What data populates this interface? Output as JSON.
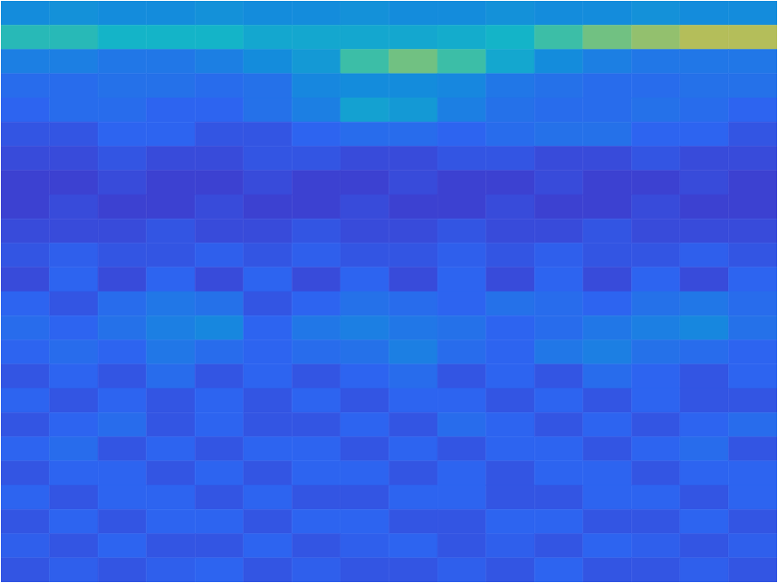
{
  "chart_data": {
    "type": "heatmap",
    "tick_labels": false,
    "xlim": [
      0,
      9
    ],
    "xticks": [
      1,
      2,
      3,
      4,
      5,
      6,
      7,
      8
    ],
    "ylim": [
      0,
      4.8
    ],
    "yticks": [
      0.8,
      1.8,
      2.8,
      3.8
    ],
    "clim": [
      0,
      1
    ],
    "cells": [
      [
        0.3,
        0.32,
        0.3,
        0.3,
        0.32,
        0.3,
        0.3,
        0.32,
        0.3,
        0.3,
        0.32,
        0.3,
        0.3,
        0.32,
        0.3,
        0.3
      ],
      [
        0.5,
        0.5,
        0.45,
        0.45,
        0.45,
        0.4,
        0.4,
        0.4,
        0.4,
        0.42,
        0.45,
        0.55,
        0.65,
        0.7,
        0.75,
        0.75
      ],
      [
        0.25,
        0.25,
        0.22,
        0.22,
        0.25,
        0.3,
        0.35,
        0.55,
        0.65,
        0.55,
        0.4,
        0.3,
        0.25,
        0.22,
        0.22,
        0.22
      ],
      [
        0.18,
        0.18,
        0.2,
        0.2,
        0.18,
        0.2,
        0.28,
        0.3,
        0.3,
        0.28,
        0.22,
        0.2,
        0.18,
        0.18,
        0.2,
        0.2
      ],
      [
        0.15,
        0.18,
        0.18,
        0.15,
        0.15,
        0.2,
        0.25,
        0.38,
        0.35,
        0.25,
        0.2,
        0.18,
        0.18,
        0.2,
        0.18,
        0.15
      ],
      [
        0.12,
        0.12,
        0.15,
        0.15,
        0.12,
        0.12,
        0.15,
        0.18,
        0.18,
        0.15,
        0.18,
        0.2,
        0.2,
        0.15,
        0.15,
        0.12
      ],
      [
        0.1,
        0.1,
        0.12,
        0.1,
        0.1,
        0.12,
        0.12,
        0.1,
        0.1,
        0.12,
        0.12,
        0.1,
        0.1,
        0.12,
        0.1,
        0.1
      ],
      [
        0.08,
        0.08,
        0.1,
        0.08,
        0.08,
        0.1,
        0.08,
        0.08,
        0.1,
        0.08,
        0.08,
        0.1,
        0.08,
        0.08,
        0.1,
        0.08
      ],
      [
        0.08,
        0.1,
        0.08,
        0.08,
        0.1,
        0.08,
        0.08,
        0.1,
        0.08,
        0.08,
        0.1,
        0.08,
        0.08,
        0.1,
        0.08,
        0.08
      ],
      [
        0.1,
        0.1,
        0.1,
        0.12,
        0.1,
        0.1,
        0.12,
        0.1,
        0.1,
        0.12,
        0.1,
        0.1,
        0.12,
        0.1,
        0.1,
        0.1
      ],
      [
        0.12,
        0.14,
        0.12,
        0.12,
        0.14,
        0.12,
        0.14,
        0.12,
        0.12,
        0.14,
        0.12,
        0.14,
        0.12,
        0.12,
        0.14,
        0.12
      ],
      [
        0.1,
        0.15,
        0.1,
        0.15,
        0.1,
        0.15,
        0.1,
        0.15,
        0.1,
        0.15,
        0.1,
        0.15,
        0.1,
        0.15,
        0.1,
        0.15
      ],
      [
        0.15,
        0.12,
        0.18,
        0.22,
        0.2,
        0.12,
        0.15,
        0.2,
        0.18,
        0.15,
        0.2,
        0.18,
        0.15,
        0.2,
        0.22,
        0.18
      ],
      [
        0.18,
        0.15,
        0.2,
        0.25,
        0.28,
        0.15,
        0.22,
        0.25,
        0.22,
        0.2,
        0.15,
        0.18,
        0.22,
        0.25,
        0.28,
        0.2
      ],
      [
        0.15,
        0.18,
        0.15,
        0.22,
        0.18,
        0.15,
        0.18,
        0.2,
        0.25,
        0.18,
        0.15,
        0.22,
        0.25,
        0.2,
        0.18,
        0.15
      ],
      [
        0.12,
        0.15,
        0.12,
        0.18,
        0.12,
        0.15,
        0.12,
        0.15,
        0.18,
        0.12,
        0.15,
        0.12,
        0.18,
        0.15,
        0.12,
        0.15
      ],
      [
        0.15,
        0.12,
        0.15,
        0.12,
        0.15,
        0.12,
        0.15,
        0.12,
        0.15,
        0.15,
        0.12,
        0.15,
        0.12,
        0.15,
        0.12,
        0.12
      ],
      [
        0.12,
        0.15,
        0.18,
        0.12,
        0.15,
        0.12,
        0.12,
        0.15,
        0.12,
        0.18,
        0.15,
        0.12,
        0.15,
        0.12,
        0.15,
        0.18
      ],
      [
        0.15,
        0.18,
        0.12,
        0.15,
        0.12,
        0.15,
        0.15,
        0.12,
        0.15,
        0.12,
        0.15,
        0.15,
        0.12,
        0.15,
        0.18,
        0.12
      ],
      [
        0.12,
        0.15,
        0.15,
        0.12,
        0.15,
        0.12,
        0.15,
        0.15,
        0.12,
        0.15,
        0.12,
        0.15,
        0.15,
        0.12,
        0.15,
        0.15
      ],
      [
        0.15,
        0.12,
        0.15,
        0.15,
        0.12,
        0.15,
        0.12,
        0.12,
        0.15,
        0.15,
        0.12,
        0.12,
        0.15,
        0.15,
        0.12,
        0.15
      ],
      [
        0.12,
        0.15,
        0.12,
        0.15,
        0.15,
        0.12,
        0.15,
        0.15,
        0.12,
        0.12,
        0.15,
        0.15,
        0.12,
        0.12,
        0.15,
        0.12
      ],
      [
        0.14,
        0.12,
        0.15,
        0.12,
        0.12,
        0.15,
        0.12,
        0.14,
        0.15,
        0.12,
        0.14,
        0.12,
        0.15,
        0.14,
        0.12,
        0.14
      ],
      [
        0.12,
        0.14,
        0.12,
        0.14,
        0.15,
        0.12,
        0.14,
        0.12,
        0.12,
        0.14,
        0.12,
        0.15,
        0.12,
        0.12,
        0.14,
        0.12
      ]
    ]
  }
}
